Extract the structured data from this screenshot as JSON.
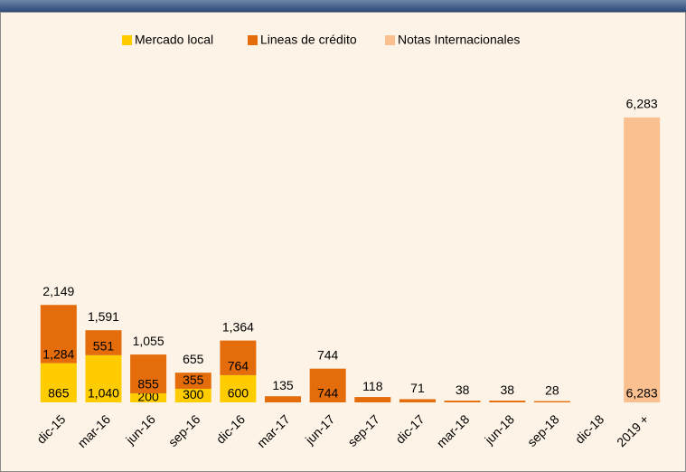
{
  "chart_data": {
    "type": "stacked_bar",
    "categories": [
      "dic-15",
      "mar-16",
      "jun-16",
      "sep-16",
      "dic-16",
      "mar-17",
      "jun-17",
      "sep-17",
      "dic-17",
      "mar-18",
      "jun-18",
      "sep-18",
      "dic-18",
      "2019 +"
    ],
    "series": [
      {
        "name": "Mercado local",
        "color": "#ffcc00",
        "values": [
          865,
          1040,
          200,
          300,
          600,
          null,
          null,
          null,
          null,
          null,
          null,
          null,
          null,
          null
        ],
        "value_labels": [
          "865",
          "1,040",
          "200",
          "300",
          "600",
          null,
          null,
          null,
          null,
          null,
          null,
          null,
          null,
          null
        ]
      },
      {
        "name": "Lineas de crédito",
        "color": "#e46c0a",
        "values": [
          1284,
          551,
          855,
          355,
          764,
          135,
          744,
          118,
          71,
          38,
          38,
          28,
          null,
          null
        ],
        "value_labels": [
          "1,284",
          "551",
          "855",
          "355",
          "764",
          "135",
          "744",
          "118",
          "71",
          "38",
          "38",
          "28",
          null,
          null
        ]
      },
      {
        "name": "Notas Internacionales",
        "color": "#fac090",
        "values": [
          null,
          null,
          null,
          null,
          null,
          null,
          null,
          null,
          null,
          null,
          null,
          null,
          null,
          6283
        ],
        "value_labels": [
          null,
          null,
          null,
          null,
          null,
          null,
          null,
          null,
          null,
          null,
          null,
          null,
          null,
          "6,283"
        ]
      }
    ],
    "totals": [
      2149,
      1591,
      1055,
      655,
      1364,
      null,
      744,
      null,
      null,
      null,
      null,
      null,
      null,
      6283
    ],
    "total_labels": [
      "2,149",
      "1,591",
      "1,055",
      "655",
      "1,364",
      null,
      "744",
      null,
      null,
      null,
      null,
      null,
      null,
      "6,283"
    ],
    "ylim": [
      0,
      6500
    ]
  }
}
